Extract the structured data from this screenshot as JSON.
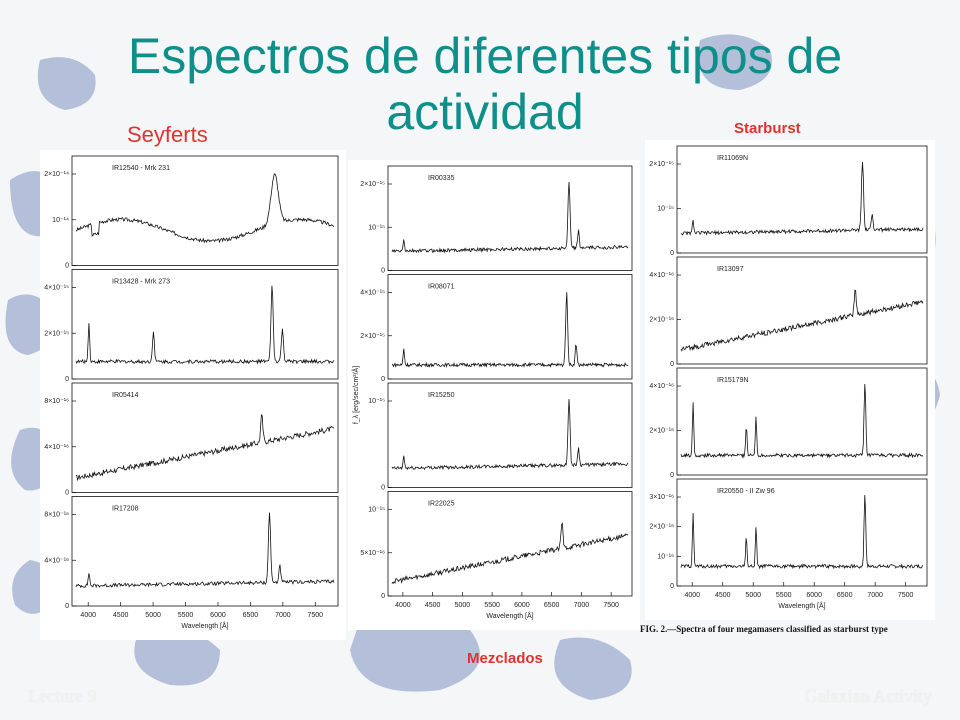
{
  "slide": {
    "title": "Espectros de diferentes tipos de actividad",
    "footer_left": "Lecture 9",
    "footer_right": "Galaxian Activity"
  },
  "groups": {
    "seyferts": "Seyferts",
    "starburst": "Starburst",
    "mezclados": "Mezclados"
  },
  "caption": "FIG. 2.—Spectra of four megamasers classified as starburst type",
  "axes": {
    "xlabel": "Wavelength [Å]",
    "ylabel": "f_λ [erg/sec/cm²/Å]",
    "x_ticks": [
      "4000",
      "4500",
      "5000",
      "5500",
      "6000",
      "6500",
      "7000",
      "7500"
    ],
    "xlim": [
      3750,
      7850
    ]
  },
  "columns": [
    {
      "name": "Seyferts",
      "panels": [
        {
          "id": "IR12540 - Mrk 231",
          "yticks": [
            "0",
            "10⁻¹⁴",
            "2×10⁻¹⁴"
          ],
          "shape": "mrk231"
        },
        {
          "id": "IR13428 - Mrk 273",
          "yticks": [
            "0",
            "2×10⁻¹⁵",
            "4×10⁻¹⁵"
          ],
          "shape": "mrk273"
        },
        {
          "id": "IR05414",
          "yticks": [
            "0",
            "4×10⁻¹⁶",
            "8×10⁻¹⁶"
          ],
          "shape": "rising"
        },
        {
          "id": "IR17208",
          "yticks": [
            "0",
            "4×10⁻¹⁶",
            "8×10⁻¹⁶"
          ],
          "shape": "flat-ha"
        }
      ]
    },
    {
      "name": "Mezclados",
      "panels": [
        {
          "id": "IR00335",
          "yticks": [
            "0",
            "10⁻¹⁵",
            "2×10⁻¹⁵"
          ],
          "shape": "flat-ha"
        },
        {
          "id": "IR08071",
          "yticks": [
            "0",
            "2×10⁻¹⁵",
            "4×10⁻¹⁵"
          ],
          "shape": "strong-ha"
        },
        {
          "id": "IR15250",
          "yticks": [
            "0",
            "10⁻¹⁵"
          ],
          "shape": "flat-ha"
        },
        {
          "id": "IR22025",
          "yticks": [
            "0",
            "5×10⁻¹⁶",
            "10⁻¹⁵"
          ],
          "shape": "rising"
        }
      ]
    },
    {
      "name": "Starburst",
      "panels": [
        {
          "id": "IR11069N",
          "yticks": [
            "0",
            "10⁻¹⁵",
            "2×10⁻¹⁵"
          ],
          "shape": "flat-ha"
        },
        {
          "id": "IR13097",
          "yticks": [
            "0",
            "2×10⁻¹⁶",
            "4×10⁻¹⁶"
          ],
          "shape": "rising"
        },
        {
          "id": "IR15179N",
          "yticks": [
            "0",
            "2×10⁻¹⁶",
            "4×10⁻¹⁶"
          ],
          "shape": "starburst-lines"
        },
        {
          "id": "IR20550 - II Zw 96",
          "yticks": [
            "0",
            "10⁻¹⁶",
            "2×10⁻¹⁶",
            "3×10⁻¹⁶"
          ],
          "shape": "starburst-lines"
        }
      ]
    }
  ]
}
